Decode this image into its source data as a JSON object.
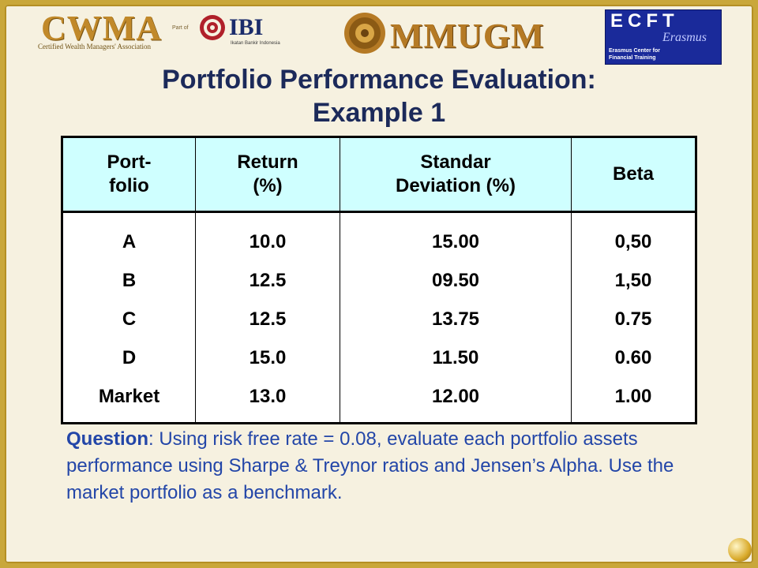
{
  "logos": {
    "cwma": {
      "name": "CWMA",
      "subtitle": "Certified Wealth Managers' Association",
      "part_of": "Part of"
    },
    "ibi": {
      "name": "IBI",
      "subtitle": "Ikatan Bankir Indonesia"
    },
    "mmugm": {
      "name": "MMUGM"
    },
    "ecft": {
      "name": "ECFT",
      "script": "Erasmus",
      "line1": "Erasmus Center for",
      "line2": "Financial Training"
    }
  },
  "title": {
    "line1": "Portfolio Performance Evaluation:",
    "line2": "Example 1"
  },
  "table": {
    "headers": [
      "Port-\nfolio",
      "Return\n(%)",
      "Standar\nDeviation (%)",
      "Beta"
    ],
    "rows": [
      [
        "A",
        "10.0",
        "15.00",
        "0,50"
      ],
      [
        "B",
        "12.5",
        "09.50",
        "1,50"
      ],
      [
        "C",
        "12.5",
        "13.75",
        "0.75"
      ],
      [
        "D",
        "15.0",
        "11.50",
        "0.60"
      ],
      [
        "Market",
        "13.0",
        "12.00",
        "1.00"
      ]
    ]
  },
  "question": {
    "label": "Question",
    "text": ": Using risk free rate = 0.08, evaluate each portfolio assets performance using Sharpe & Treynor ratios and Jensen’s Alpha. Use the market portfolio as a benchmark."
  },
  "colors": {
    "frame": "#c9a73a",
    "background": "#f6f1e0",
    "title": "#1c2a5a",
    "header_fill": "#cfffff",
    "question_text": "#2346a8"
  }
}
